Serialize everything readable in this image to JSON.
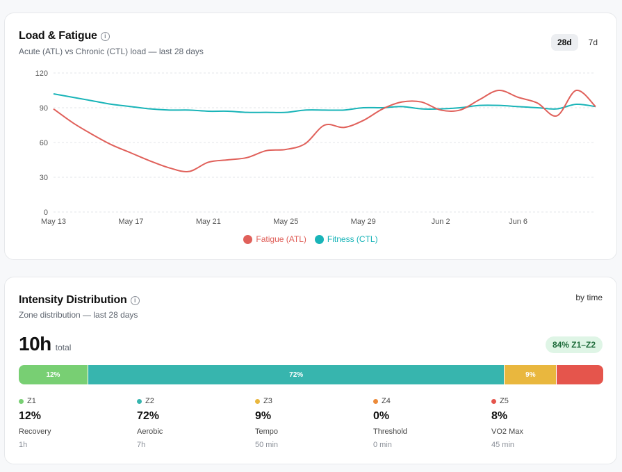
{
  "load_card": {
    "title": "Load & Fatigue",
    "subtitle": "Acute (ATL) vs Chronic (CTL) load — last 28 days",
    "info_icon": "info-icon",
    "toggle": [
      {
        "label": "28d",
        "active": true
      },
      {
        "label": "7d",
        "active": false
      }
    ]
  },
  "chart_data": {
    "type": "line",
    "title": "",
    "xlabel": "",
    "ylabel": "",
    "x_ticks": [
      "May 13",
      "May 17",
      "May 21",
      "May 25",
      "May 29",
      "Jun 2",
      "Jun 6"
    ],
    "y_ticks": [
      "0",
      "30",
      "60",
      "90",
      "120"
    ],
    "ylim": [
      0,
      120
    ],
    "x": [
      "May 13",
      "May 14",
      "May 15",
      "May 16",
      "May 17",
      "May 18",
      "May 19",
      "May 20",
      "May 21",
      "May 22",
      "May 23",
      "May 24",
      "May 25",
      "May 26",
      "May 27",
      "May 28",
      "May 29",
      "May 30",
      "May 31",
      "Jun 1",
      "Jun 2",
      "Jun 3",
      "Jun 4",
      "Jun 5",
      "Jun 6",
      "Jun 7",
      "Jun 8",
      "Jun 9",
      "Jun 10"
    ],
    "grid": "horizontal dashed",
    "legend_position": "bottom-center",
    "series": [
      {
        "name": "Fatigue (ATL)",
        "color": "#e0605a",
        "values": [
          89,
          77,
          67,
          58,
          51,
          44,
          38,
          35,
          43,
          45,
          47,
          53,
          54,
          59,
          75,
          73,
          79,
          89,
          95,
          95,
          88,
          88,
          97,
          105,
          99,
          94,
          83,
          105,
          91
        ]
      },
      {
        "name": "Fitness (CTL)",
        "color": "#19b4b8",
        "values": [
          102,
          99,
          96,
          93,
          91,
          89,
          88,
          88,
          87,
          87,
          86,
          86,
          86,
          88,
          88,
          88,
          90,
          90,
          91,
          89,
          89,
          90,
          92,
          92,
          91,
          90,
          89,
          93,
          91
        ]
      }
    ]
  },
  "intensity_card": {
    "title": "Intensity Distribution",
    "subtitle": "Zone distribution — last 28 days",
    "info_icon": "info-icon",
    "by_time": "by time",
    "total_value": "10h",
    "total_unit": "total",
    "badge": "84% Z1–Z2",
    "badge_color": "#dff5e6",
    "zones": [
      {
        "id": "Z1",
        "pct_label": "12%",
        "pct": 12,
        "bar_label": "12%",
        "name": "Recovery",
        "time": "1h",
        "color": "#78cf73"
      },
      {
        "id": "Z2",
        "pct_label": "72%",
        "pct": 72,
        "bar_label": "72%",
        "name": "Aerobic",
        "time": "7h",
        "color": "#37b5ae"
      },
      {
        "id": "Z3",
        "pct_label": "9%",
        "pct": 9,
        "bar_label": "9%",
        "name": "Tempo",
        "time": "50 min",
        "color": "#e9b73e"
      },
      {
        "id": "Z4",
        "pct_label": "0%",
        "pct": 0,
        "bar_label": "",
        "name": "Threshold",
        "time": "0 min",
        "color": "#ec8a3a"
      },
      {
        "id": "Z5",
        "pct_label": "8%",
        "pct": 8,
        "bar_label": "",
        "name": "VO2 Max",
        "time": "45 min",
        "color": "#e5554c"
      }
    ]
  }
}
